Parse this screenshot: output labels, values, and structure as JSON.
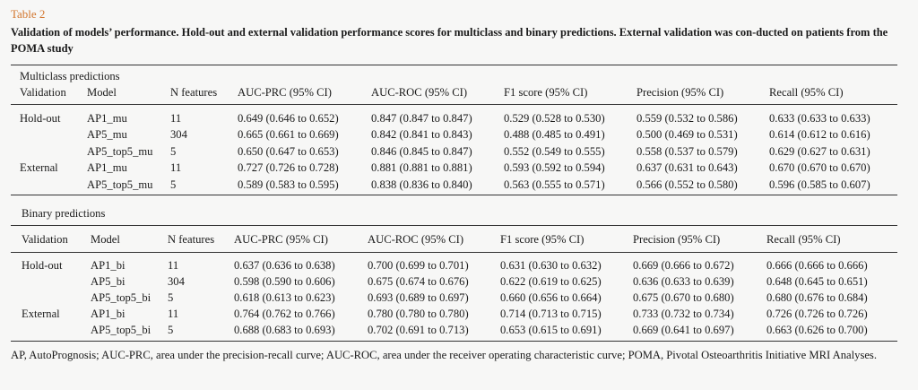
{
  "table_label": "Table 2",
  "caption": "Validation of models’ performance. Hold-out and external validation performance scores for multiclass and binary predictions. External validation was con-ducted on patients from the POMA study",
  "section1": {
    "title": "Multiclass predictions",
    "headers": [
      "Validation",
      "Model",
      "N features",
      "AUC-PRC (95% CI)",
      "AUC-ROC (95% CI)",
      "F1 score (95% CI)",
      "Precision (95% CI)",
      "Recall (95% CI)"
    ],
    "rows": [
      [
        "Hold-out",
        "AP1_mu",
        "11",
        "0.649 (0.646 to 0.652)",
        "0.847 (0.847 to 0.847)",
        "0.529 (0.528 to 0.530)",
        "0.559 (0.532 to 0.586)",
        "0.633 (0.633 to 0.633)"
      ],
      [
        "",
        "AP5_mu",
        "304",
        "0.665 (0.661 to 0.669)",
        "0.842 (0.841 to 0.843)",
        "0.488 (0.485 to 0.491)",
        "0.500 (0.469 to 0.531)",
        "0.614 (0.612 to 0.616)"
      ],
      [
        "",
        "AP5_top5_mu",
        "5",
        "0.650 (0.647 to 0.653)",
        "0.846 (0.845 to 0.847)",
        "0.552 (0.549 to 0.555)",
        "0.558 (0.537 to 0.579)",
        "0.629 (0.627 to 0.631)"
      ],
      [
        "External",
        "AP1_mu",
        "11",
        "0.727 (0.726 to 0.728)",
        "0.881 (0.881 to 0.881)",
        "0.593 (0.592 to 0.594)",
        "0.637 (0.631 to 0.643)",
        "0.670 (0.670 to 0.670)"
      ],
      [
        "",
        "AP5_top5_mu",
        "5",
        "0.589 (0.583 to 0.595)",
        "0.838 (0.836 to 0.840)",
        "0.563 (0.555 to 0.571)",
        "0.566 (0.552 to 0.580)",
        "0.596 (0.585 to 0.607)"
      ]
    ]
  },
  "section2": {
    "title": "Binary predictions",
    "headers": [
      "Validation",
      "Model",
      "N features",
      "AUC-PRC (95% CI)",
      "AUC-ROC (95% CI)",
      "F1 score (95% CI)",
      "Precision (95% CI)",
      "Recall (95% CI)"
    ],
    "rows": [
      [
        "Hold-out",
        "AP1_bi",
        "11",
        "0.637 (0.636 to 0.638)",
        "0.700 (0.699 to 0.701)",
        "0.631 (0.630 to 0.632)",
        "0.669 (0.666 to 0.672)",
        "0.666 (0.666 to 0.666)"
      ],
      [
        "",
        "AP5_bi",
        "304",
        "0.598 (0.590 to 0.606)",
        "0.675 (0.674 to 0.676)",
        "0.622 (0.619 to 0.625)",
        "0.636 (0.633 to 0.639)",
        "0.648 (0.645 to 0.651)"
      ],
      [
        "",
        "AP5_top5_bi",
        "5",
        "0.618 (0.613 to 0.623)",
        "0.693 (0.689 to 0.697)",
        "0.660 (0.656 to 0.664)",
        "0.675 (0.670 to 0.680)",
        "0.680 (0.676 to 0.684)"
      ],
      [
        "External",
        "AP1_bi",
        "11",
        "0.764 (0.762 to 0.766)",
        "0.780 (0.780 to 0.780)",
        "0.714 (0.713 to 0.715)",
        "0.733 (0.732 to 0.734)",
        "0.726 (0.726 to 0.726)"
      ],
      [
        "",
        "AP5_top5_bi",
        "5",
        "0.688 (0.683 to 0.693)",
        "0.702 (0.691 to 0.713)",
        "0.653 (0.615 to 0.691)",
        "0.669 (0.641 to 0.697)",
        "0.663 (0.626 to 0.700)"
      ]
    ]
  },
  "footnote": "AP, AutoPrognosis; AUC-PRC, area under the precision-recall curve; AUC-ROC, area under the receiver operating characteristic curve; POMA, Pivotal Osteoarthritis Initiative MRI Analyses."
}
